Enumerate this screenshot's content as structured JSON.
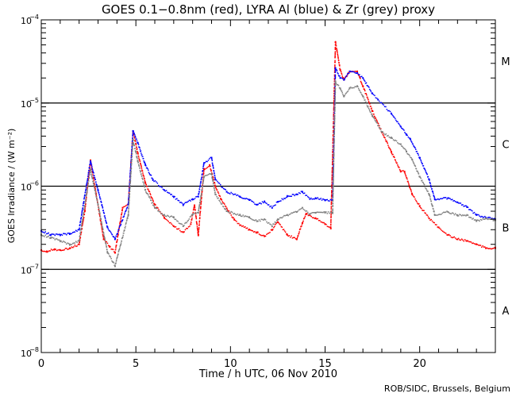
{
  "chart_data": {
    "type": "scatter",
    "title": "GOES 0.1−0.8nm (red), LYRA Al (blue) & Zr (grey) proxy",
    "xlabel": "Time / h UTC, 06 Nov 2010",
    "ylabel": "GOES Irradiance / (W m⁻²)",
    "xlim": [
      0,
      24
    ],
    "ylim": [
      1e-08,
      0.0001
    ],
    "yscale": "log",
    "x_ticks": [
      0,
      5,
      10,
      15,
      20
    ],
    "x_tick_labels": [
      "0",
      "5",
      "10",
      "15",
      "20"
    ],
    "y_ticks": [
      1e-08,
      1e-07,
      1e-06,
      1e-05,
      0.0001
    ],
    "y_tick_labels": [
      {
        "base": "10",
        "exp": "−8"
      },
      {
        "base": "10",
        "exp": "−7"
      },
      {
        "base": "10",
        "exp": "−6"
      },
      {
        "base": "10",
        "exp": "−5"
      },
      {
        "base": "10",
        "exp": "−4"
      }
    ],
    "flare_class_lines": [
      1e-07,
      1e-06,
      1e-05
    ],
    "flare_class_labels": [
      {
        "label": "M",
        "value": 3.2e-05
      },
      {
        "label": "C",
        "value": 3.2e-06
      },
      {
        "label": "B",
        "value": 3.2e-07
      },
      {
        "label": "A",
        "value": 3.2e-08
      }
    ],
    "series": [
      {
        "name": "GOES 0.1-0.8nm",
        "color": "#ff0000",
        "x": [
          0.0,
          0.3,
          0.7,
          1.0,
          1.5,
          2.0,
          2.3,
          2.6,
          2.9,
          3.3,
          3.6,
          3.9,
          4.3,
          4.6,
          4.85,
          5.1,
          5.5,
          6.0,
          6.5,
          7.0,
          7.5,
          7.9,
          8.1,
          8.3,
          8.6,
          8.9,
          9.2,
          9.5,
          9.8,
          10.2,
          10.5,
          11.0,
          11.4,
          11.8,
          12.2,
          12.5,
          13.0,
          13.5,
          13.8,
          14.0,
          14.5,
          15.0,
          15.3,
          15.55,
          15.8,
          16.0,
          16.3,
          16.7,
          17.0,
          17.5,
          18.0,
          18.5,
          19.0,
          19.2,
          19.6,
          20.0,
          20.5,
          21.0,
          21.5,
          22.0,
          22.5,
          23.0,
          23.5,
          24.0
        ],
        "y": [
          1.7e-07,
          1.65e-07,
          1.75e-07,
          1.7e-07,
          1.8e-07,
          2e-07,
          5e-07,
          2.05e-06,
          8e-07,
          2.3e-07,
          1.9e-07,
          1.6e-07,
          5.5e-07,
          6.1e-07,
          4.6e-06,
          2.5e-06,
          1.1e-06,
          6e-07,
          4.2e-07,
          3.3e-07,
          2.8e-07,
          3.5e-07,
          5.9e-07,
          2.6e-07,
          1.6e-06,
          1.8e-06,
          1e-06,
          7e-07,
          5.4e-07,
          4e-07,
          3.4e-07,
          3e-07,
          2.8e-07,
          2.5e-07,
          3e-07,
          3.7e-07,
          2.6e-07,
          2.3e-07,
          3.6e-07,
          4.6e-07,
          4.1e-07,
          3.5e-07,
          3.1e-07,
          5.4e-05,
          2.5e-05,
          1.9e-05,
          2.4e-05,
          2.4e-05,
          1.6e-05,
          8e-06,
          4.5e-06,
          2.6e-06,
          1.5e-06,
          1.5e-06,
          8e-07,
          5.8e-07,
          4.1e-07,
          3.2e-07,
          2.6e-07,
          2.3e-07,
          2.2e-07,
          2e-07,
          1.8e-07,
          1.8e-07
        ]
      },
      {
        "name": "LYRA Al proxy",
        "color": "#0000ff",
        "x": [
          0.0,
          0.5,
          1.0,
          1.5,
          2.0,
          2.6,
          3.0,
          3.5,
          3.9,
          4.6,
          4.85,
          5.1,
          5.5,
          5.9,
          6.5,
          7.0,
          7.5,
          8.0,
          8.3,
          8.6,
          9.0,
          9.2,
          9.8,
          10.5,
          11.0,
          11.4,
          11.8,
          12.2,
          12.5,
          13.0,
          13.5,
          13.8,
          14.2,
          14.5,
          15.0,
          15.4,
          15.55,
          15.8,
          16.0,
          16.3,
          16.7,
          17.0,
          17.5,
          17.8,
          18.5,
          19.0,
          19.3,
          19.5,
          20.0,
          20.5,
          20.8,
          21.5,
          22.0,
          22.5,
          23.0,
          23.5,
          24.0
        ],
        "y": [
          2.9e-07,
          2.6e-07,
          2.6e-07,
          2.7e-07,
          3e-07,
          2e-06,
          9e-07,
          3.2e-07,
          2.3e-07,
          6e-07,
          4.6e-06,
          3.3e-06,
          1.8e-06,
          1.2e-06,
          9e-07,
          7.5e-07,
          6e-07,
          7e-07,
          7.5e-07,
          1.9e-06,
          2.2e-06,
          1.2e-06,
          8.6e-07,
          7.5e-07,
          6.8e-07,
          6e-07,
          6.5e-07,
          5.5e-07,
          6.5e-07,
          7.5e-07,
          8e-07,
          8.6e-07,
          7e-07,
          7.2e-07,
          6.8e-07,
          6.8e-07,
          2.6e-05,
          2e-05,
          1.9e-05,
          2.4e-05,
          2.3e-05,
          2e-05,
          1.3e-05,
          1.1e-05,
          7.5e-06,
          5.2e-06,
          4.2e-06,
          3.7e-06,
          2.2e-06,
          1.2e-06,
          7e-07,
          7.2e-07,
          6.4e-07,
          5.6e-07,
          4.5e-07,
          4.2e-07,
          4e-07
        ]
      },
      {
        "name": "LYRA Zr proxy",
        "color": "#808080",
        "x": [
          0.0,
          0.5,
          1.0,
          1.5,
          2.0,
          2.6,
          3.0,
          3.5,
          3.9,
          4.6,
          4.85,
          5.1,
          5.5,
          6.0,
          6.5,
          7.0,
          7.5,
          8.0,
          8.3,
          8.6,
          9.0,
          9.2,
          9.8,
          10.5,
          11.0,
          11.4,
          11.8,
          12.2,
          12.5,
          13.0,
          13.5,
          13.8,
          14.2,
          14.5,
          15.0,
          15.4,
          15.55,
          15.8,
          16.0,
          16.3,
          16.7,
          17.0,
          17.5,
          18.0,
          18.5,
          19.0,
          19.3,
          19.6,
          20.0,
          20.5,
          20.8,
          21.5,
          22.0,
          22.5,
          23.0,
          23.5,
          24.0
        ],
        "y": [
          2.6e-07,
          2.4e-07,
          2.2e-07,
          2e-07,
          2.2e-07,
          1.6e-06,
          6e-07,
          1.6e-07,
          1.1e-07,
          4.5e-07,
          3.6e-06,
          2e-06,
          9e-07,
          5.5e-07,
          4.5e-07,
          4.2e-07,
          3.3e-07,
          4.6e-07,
          4.8e-07,
          1.3e-06,
          1.4e-06,
          8e-07,
          5e-07,
          4.5e-07,
          4.2e-07,
          3.8e-07,
          4e-07,
          3.3e-07,
          4e-07,
          4.5e-07,
          4.9e-07,
          5.5e-07,
          4.6e-07,
          4.8e-07,
          4.8e-07,
          4.8e-07,
          1.8e-05,
          1.5e-05,
          1.2e-05,
          1.5e-05,
          1.6e-05,
          1.2e-05,
          7e-06,
          4.5e-06,
          3.8e-06,
          3.2e-06,
          2.6e-06,
          2.1e-06,
          1.3e-06,
          8e-07,
          4.5e-07,
          4.9e-07,
          4.5e-07,
          4.5e-07,
          3.8e-07,
          4.1e-07,
          3.9e-07
        ]
      }
    ]
  },
  "footer": {
    "credit": "ROB/SIDC, Brussels, Belgium"
  }
}
